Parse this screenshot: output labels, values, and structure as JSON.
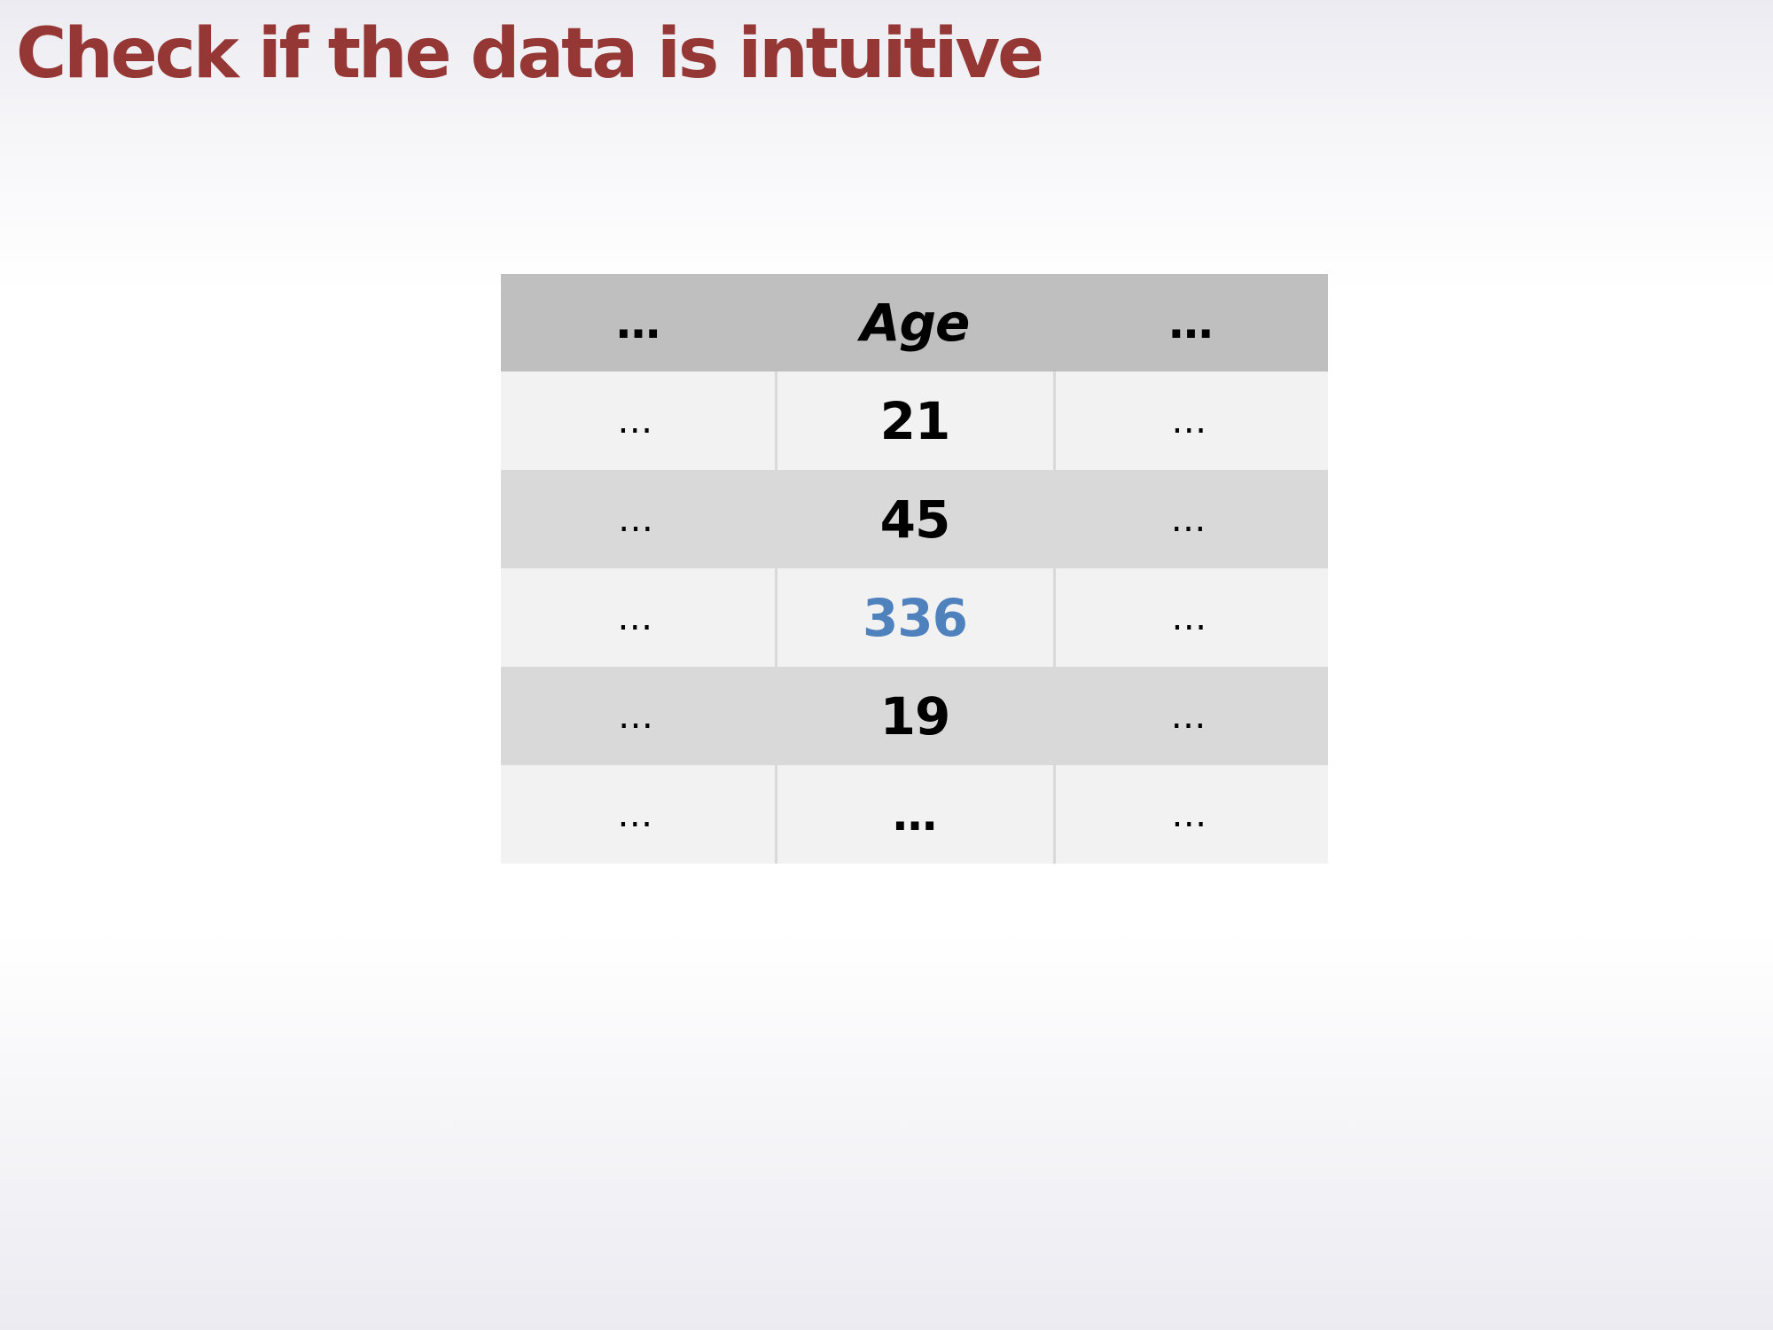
{
  "slide": {
    "title": "Check if the data is intuitive",
    "title_color": "#953735"
  },
  "table": {
    "headers": [
      "…",
      "Age",
      "…"
    ],
    "rows": [
      [
        "…",
        "21",
        "…"
      ],
      [
        "…",
        "45",
        "…"
      ],
      [
        "…",
        "336",
        "…"
      ],
      [
        "…",
        "19",
        "…"
      ],
      [
        "…",
        "…",
        "…"
      ]
    ],
    "highlighted_value": "336",
    "highlight_color": "#4f81bd",
    "colors": {
      "header_bg": "#bfbfbf",
      "row_light": "#f2f2f2",
      "row_dark": "#d9d9d9"
    }
  }
}
